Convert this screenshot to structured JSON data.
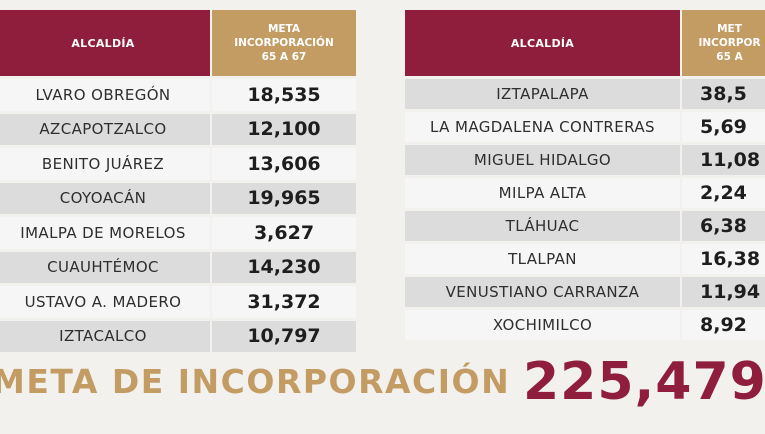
{
  "left_table": {
    "header": {
      "name": "ALCALDÍA",
      "meta_line1": "META",
      "meta_line2": "INCORPORACIÓN",
      "meta_line3": "65 A 67"
    },
    "rows": [
      {
        "name": "LVARO OBREGÓN",
        "value": "18,535"
      },
      {
        "name": "AZCAPOTZALCO",
        "value": "12,100"
      },
      {
        "name": "BENITO JUÁREZ",
        "value": "13,606"
      },
      {
        "name": "COYOACÁN",
        "value": "19,965"
      },
      {
        "name": "IMALPA DE MORELOS",
        "value": "3,627"
      },
      {
        "name": "CUAUHTÉMOC",
        "value": "14,230"
      },
      {
        "name": "USTAVO A. MADERO",
        "value": "31,372"
      },
      {
        "name": "IZTACALCO",
        "value": "10,797"
      }
    ]
  },
  "right_table": {
    "header": {
      "name": "ALCALDÍA",
      "meta_line1": "MET",
      "meta_line2": "INCORPOR",
      "meta_line3": "65 A"
    },
    "rows": [
      {
        "name": "IZTAPALAPA",
        "value": "38,5"
      },
      {
        "name": "LA MAGDALENA CONTRERAS",
        "value": "5,69"
      },
      {
        "name": "MIGUEL HIDALGO",
        "value": "11,08"
      },
      {
        "name": "MILPA ALTA",
        "value": "2,24"
      },
      {
        "name": "TLÁHUAC",
        "value": "6,38"
      },
      {
        "name": "TLALPAN",
        "value": "16,38"
      },
      {
        "name": "VENUSTIANO CARRANZA",
        "value": "11,94"
      },
      {
        "name": "XOCHIMILCO",
        "value": "8,92"
      }
    ]
  },
  "total": {
    "label": "META DE INCORPORACIÓN",
    "value": "225,479"
  },
  "colors": {
    "header_maroon": "#8f1d3c",
    "header_gold": "#c39c64",
    "row_shade": "#dcdcdc",
    "row_plain": "#f6f6f6"
  }
}
